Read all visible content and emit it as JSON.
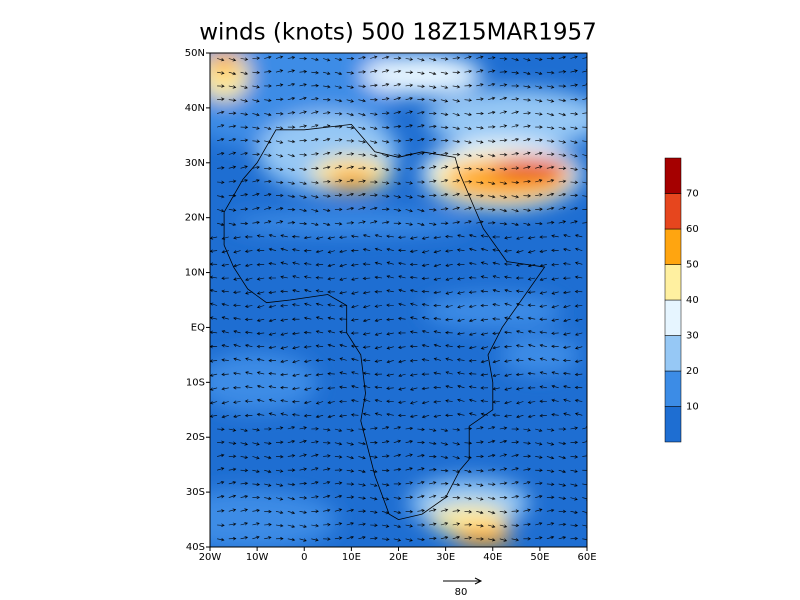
{
  "chart_data": {
    "type": "map",
    "title": "winds (knots) 500 18Z15MAR1957",
    "xlim": [
      -20,
      60
    ],
    "ylim": [
      -40,
      50
    ],
    "xticks": [
      {
        "value": -20,
        "label": "20W"
      },
      {
        "value": -10,
        "label": "10W"
      },
      0,
      {
        "value": 10,
        "label": "10E"
      },
      {
        "value": 20,
        "label": "20E"
      },
      {
        "value": 30,
        "label": "30E"
      },
      {
        "value": 40,
        "label": "40E"
      },
      {
        "value": 50,
        "label": "50E"
      },
      {
        "value": 60,
        "label": "60E"
      }
    ],
    "yticks": [
      {
        "value": -40,
        "label": "40S"
      },
      {
        "value": -30,
        "label": "30S"
      },
      {
        "value": -20,
        "label": "20S"
      },
      {
        "value": -10,
        "label": "10S"
      },
      {
        "value": 0,
        "label": "EQ"
      },
      {
        "value": 10,
        "label": "10N"
      },
      {
        "value": 20,
        "label": "20N"
      },
      {
        "value": 30,
        "label": "30N"
      },
      {
        "value": 40,
        "label": "40N"
      },
      {
        "value": 50,
        "label": "50N"
      }
    ],
    "colorbar": {
      "levels": [
        10,
        20,
        30,
        40,
        50,
        60,
        70
      ],
      "colors": [
        "#1e6ed2",
        "#3c8ce6",
        "#96c8f5",
        "#e6f5ff",
        "#fff0a0",
        "#ffa510",
        "#e6461e",
        "#a50000"
      ]
    },
    "reference_vector": 80
  }
}
